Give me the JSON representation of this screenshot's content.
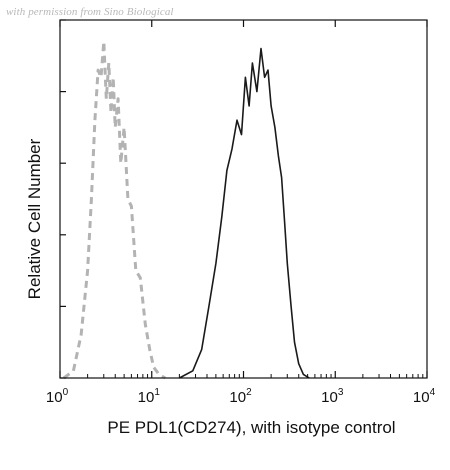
{
  "watermark": "with permission from Sino Biological",
  "chart_data": {
    "type": "area",
    "xlabel": "PE PDL1(CD274), with isotype control",
    "ylabel": "Relative Cell Number",
    "xscale": "log",
    "xlim": [
      1,
      10000
    ],
    "ylim": [
      0,
      100
    ],
    "x_ticks": [
      {
        "base": "10",
        "exp": "0",
        "value": 1
      },
      {
        "base": "10",
        "exp": "1",
        "value": 10
      },
      {
        "base": "10",
        "exp": "2",
        "value": 100
      },
      {
        "base": "10",
        "exp": "3",
        "value": 1000
      },
      {
        "base": "10",
        "exp": "4",
        "value": 10000
      }
    ],
    "series": [
      {
        "role": "isotype control",
        "style": "dashed",
        "color": "#b3b3b3",
        "x": [
          1.1,
          1.4,
          1.7,
          2.0,
          2.2,
          2.4,
          2.6,
          2.8,
          3.0,
          3.2,
          3.4,
          3.6,
          3.8,
          4.0,
          4.3,
          4.6,
          5.0,
          5.5,
          6.0,
          6.7,
          7.5,
          8.5,
          9.5,
          10.5,
          12.0,
          14.0
        ],
        "y": [
          0,
          2,
          12,
          30,
          50,
          72,
          86,
          84,
          94,
          78,
          88,
          74,
          84,
          70,
          78,
          60,
          70,
          50,
          48,
          30,
          28,
          15,
          8,
          3,
          1,
          0
        ]
      },
      {
        "role": "PDL1",
        "style": "solid",
        "color": "#1a1a1a",
        "x": [
          20,
          28,
          35,
          42,
          50,
          58,
          66,
          75,
          85,
          95,
          105,
          115,
          125,
          140,
          155,
          170,
          185,
          200,
          220,
          240,
          260,
          280,
          300,
          330,
          360,
          400,
          450,
          520
        ],
        "y": [
          0,
          2,
          8,
          20,
          32,
          45,
          58,
          64,
          72,
          68,
          84,
          76,
          88,
          80,
          92,
          84,
          86,
          76,
          70,
          62,
          56,
          44,
          32,
          20,
          10,
          4,
          1,
          0
        ]
      }
    ],
    "grid": false,
    "legend": "none"
  }
}
